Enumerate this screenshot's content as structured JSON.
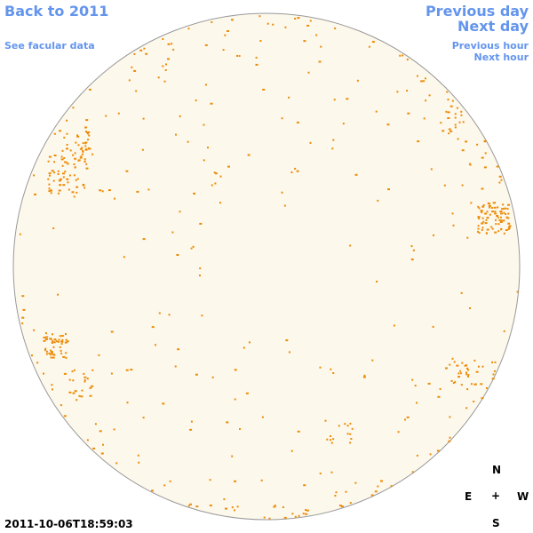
{
  "links": {
    "back": "Back to 2011",
    "facular": "See facular data",
    "previous_day": "Previous day",
    "next_day": "Next day",
    "previous_hour": "Previous hour",
    "next_hour": "Next hour"
  },
  "compass": {
    "north": "N",
    "east": "E",
    "center": "+",
    "west": "W",
    "south": "S"
  },
  "timestamp": "2011-10-06T18:59:03"
}
